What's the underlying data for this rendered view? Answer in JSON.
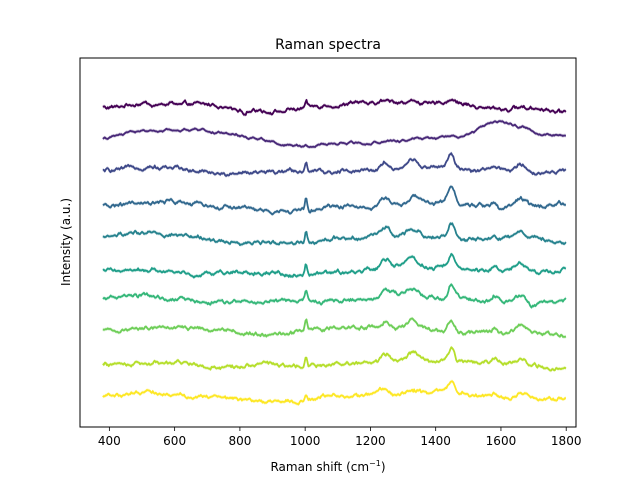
{
  "chart_data": {
    "type": "line",
    "title": "Raman spectra",
    "xlabel_main": "Raman shift (cm",
    "xlabel_sup": "−1",
    "xlabel_end": ")",
    "ylabel": "Intensity (a.u.)",
    "xlim": [
      310,
      1830
    ],
    "ylim": [
      0,
      10.6
    ],
    "x_ticks": [
      400,
      600,
      800,
      1000,
      1200,
      1400,
      1600,
      1800
    ],
    "x_tick_labels": [
      "400",
      "600",
      "800",
      "1000",
      "1200",
      "1400",
      "1600",
      "1800"
    ],
    "y_ticks_visible": false,
    "grid": false,
    "legend": "none",
    "x_range": [
      380,
      1800
    ],
    "peaks": [
      {
        "center": 1003,
        "width": 5,
        "height": 0.35
      },
      {
        "center": 1245,
        "width": 18,
        "height": 0.25
      },
      {
        "center": 1330,
        "width": 25,
        "height": 0.22
      },
      {
        "center": 1448,
        "width": 14,
        "height": 0.45
      },
      {
        "center": 1580,
        "width": 12,
        "height": 0.12
      },
      {
        "center": 1660,
        "width": 25,
        "height": 0.25
      }
    ],
    "series": [
      {
        "color": "#440154",
        "baseline": 9.2,
        "peak_scale": 0.35,
        "smooth": false
      },
      {
        "color": "#482878",
        "baseline": 8.3,
        "peak_scale": 0.15,
        "smooth": true
      },
      {
        "color": "#3e4989",
        "baseline": 7.35,
        "peak_scale": 1.0,
        "smooth": false
      },
      {
        "color": "#31688e",
        "baseline": 6.35,
        "peak_scale": 1.05,
        "smooth": false
      },
      {
        "color": "#26828e",
        "baseline": 5.45,
        "peak_scale": 1.0,
        "smooth": false
      },
      {
        "color": "#1f9e89",
        "baseline": 4.5,
        "peak_scale": 0.95,
        "smooth": false
      },
      {
        "color": "#35b779",
        "baseline": 3.65,
        "peak_scale": 0.9,
        "smooth": false
      },
      {
        "color": "#6ece58",
        "baseline": 2.75,
        "peak_scale": 0.9,
        "smooth": false
      },
      {
        "color": "#b5de2b",
        "baseline": 1.85,
        "peak_scale": 0.85,
        "smooth": false
      },
      {
        "color": "#fde725",
        "baseline": 0.9,
        "peak_scale": 0.6,
        "smooth": false
      }
    ]
  }
}
